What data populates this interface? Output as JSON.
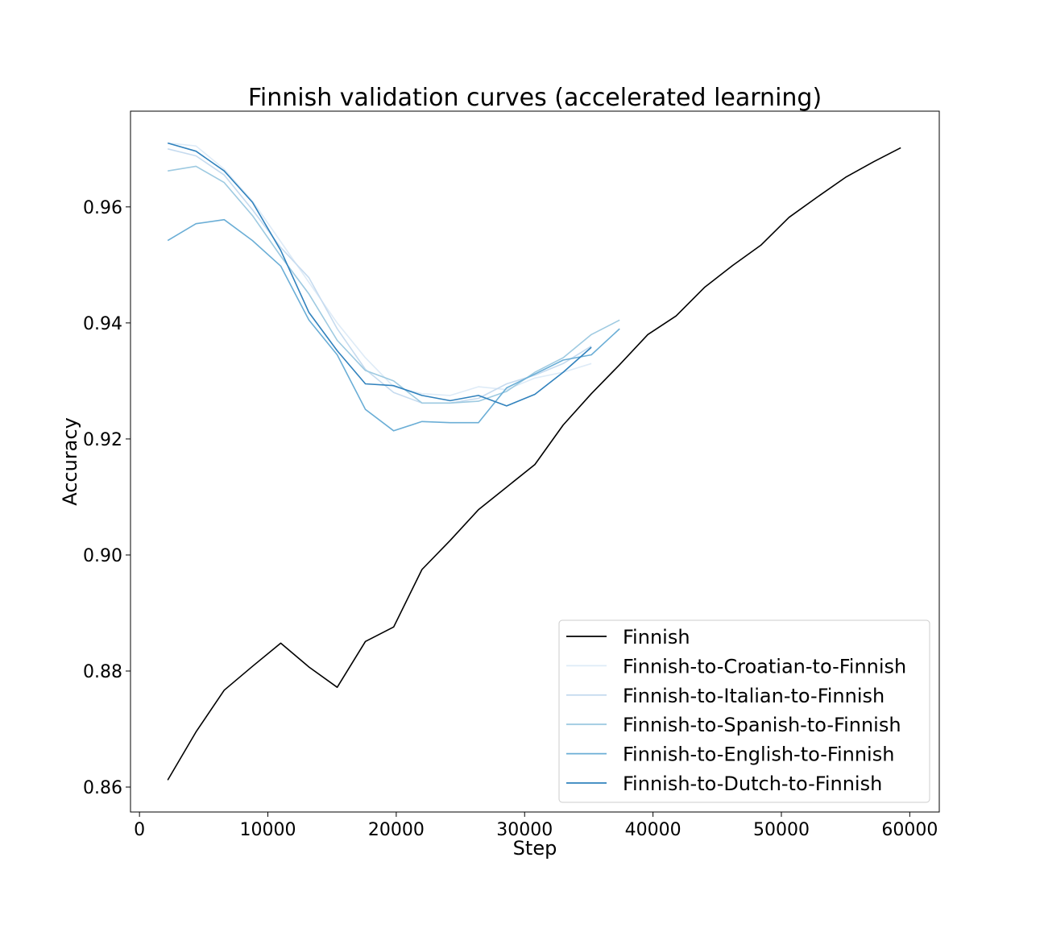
{
  "chart_data": {
    "type": "line",
    "title": "Finnish validation curves (accelerated learning)",
    "xlabel": "Step",
    "ylabel": "Accuracy",
    "xlim": [
      -700,
      62300
    ],
    "ylim": [
      0.8557,
      0.9765
    ],
    "xticks": [
      0,
      10000,
      20000,
      30000,
      40000,
      50000,
      60000
    ],
    "yticks": [
      0.86,
      0.88,
      0.9,
      0.92,
      0.94,
      0.96
    ],
    "xtick_labels": [
      "0",
      "10000",
      "20000",
      "30000",
      "40000",
      "50000",
      "60000"
    ],
    "ytick_labels": [
      "0.86",
      "0.88",
      "0.90",
      "0.92",
      "0.94",
      "0.96"
    ],
    "grid": false,
    "legend_position": "lower-right",
    "series": [
      {
        "name": "Finnish",
        "color": "#000000",
        "x": [
          2200,
          4400,
          6600,
          8800,
          11000,
          13200,
          15400,
          17600,
          19800,
          22000,
          24200,
          26400,
          28600,
          30800,
          33000,
          35200,
          37400,
          39600,
          41800,
          44000,
          46200,
          48400,
          50600,
          52800,
          55000,
          57200,
          59300
        ],
        "y": [
          0.8612,
          0.8695,
          0.8767,
          0.8808,
          0.8848,
          0.8807,
          0.8772,
          0.8851,
          0.8876,
          0.8975,
          0.9025,
          0.9078,
          0.9117,
          0.9156,
          0.9224,
          0.9278,
          0.9328,
          0.938,
          0.9412,
          0.9461,
          0.9499,
          0.9534,
          0.9582,
          0.9617,
          0.9651,
          0.9678,
          0.9702
        ]
      },
      {
        "name": "Finnish-to-Croatian-to-Finnish",
        "color": "#deebf7",
        "x": [
          2200,
          4400,
          6600,
          8800,
          11000,
          13200,
          15400,
          17600,
          19800,
          22000,
          24200,
          26400,
          28600,
          30800,
          33000,
          35200
        ],
        "y": [
          0.971,
          0.9705,
          0.9665,
          0.961,
          0.954,
          0.947,
          0.94,
          0.934,
          0.929,
          0.9278,
          0.9275,
          0.929,
          0.9285,
          0.9305,
          0.9315,
          0.933
        ]
      },
      {
        "name": "Finnish-to-Italian-to-Finnish",
        "color": "#c6dbef",
        "x": [
          2200,
          4400,
          6600,
          8800,
          11000,
          13200,
          15400,
          17600,
          19800,
          22000,
          24200,
          26400,
          28600,
          30800,
          33000,
          35200
        ],
        "y": [
          0.97,
          0.9688,
          0.9655,
          0.9595,
          0.953,
          0.9478,
          0.939,
          0.932,
          0.928,
          0.9262,
          0.9262,
          0.927,
          0.9295,
          0.931,
          0.933,
          0.936
        ]
      },
      {
        "name": "Finnish-to-Spanish-to-Finnish",
        "color": "#9ecae1",
        "x": [
          2200,
          4400,
          6600,
          8800,
          11000,
          13200,
          15400,
          17600,
          19800,
          22000,
          24200,
          26400,
          28600,
          30800,
          33000,
          35200,
          37400
        ],
        "y": [
          0.9662,
          0.967,
          0.9642,
          0.9585,
          0.9515,
          0.945,
          0.937,
          0.9318,
          0.93,
          0.9262,
          0.9262,
          0.9265,
          0.9282,
          0.9315,
          0.934,
          0.938,
          0.9405
        ]
      },
      {
        "name": "Finnish-to-English-to-Finnish",
        "color": "#6baed6",
        "x": [
          2200,
          4400,
          6600,
          8800,
          11000,
          13200,
          15400,
          17600,
          19800,
          22000,
          24200,
          26400,
          28600,
          30800,
          33000,
          35200,
          37400
        ],
        "y": [
          0.9542,
          0.9571,
          0.9578,
          0.9542,
          0.9498,
          0.9405,
          0.9345,
          0.9251,
          0.9214,
          0.923,
          0.9228,
          0.9228,
          0.9288,
          0.9312,
          0.9336,
          0.9345,
          0.939
        ]
      },
      {
        "name": "Finnish-to-Dutch-to-Finnish",
        "color": "#3182bd",
        "x": [
          2200,
          4400,
          6600,
          8800,
          11000,
          13200,
          15400,
          17600,
          19800,
          22000,
          24200,
          26400,
          28600,
          30800,
          33000,
          35200
        ],
        "y": [
          0.971,
          0.9696,
          0.9662,
          0.9608,
          0.9525,
          0.9418,
          0.9352,
          0.9295,
          0.9292,
          0.9275,
          0.9266,
          0.9275,
          0.9257,
          0.9277,
          0.9315,
          0.9358
        ]
      }
    ]
  }
}
